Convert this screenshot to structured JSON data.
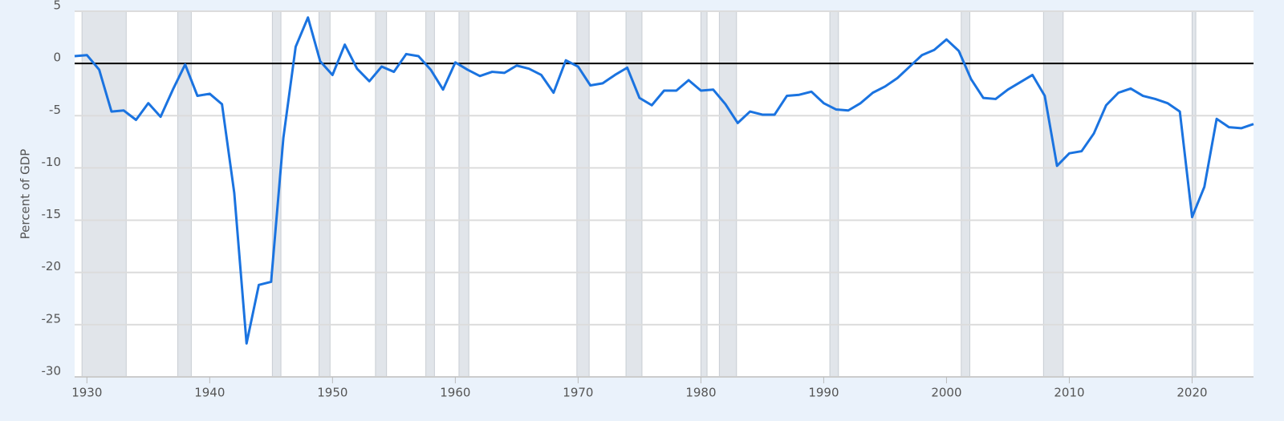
{
  "chart_data": {
    "type": "line",
    "y_label": "Percent of GDP",
    "x": [
      1929,
      1930,
      1931,
      1932,
      1933,
      1934,
      1935,
      1936,
      1937,
      1938,
      1939,
      1940,
      1941,
      1942,
      1943,
      1944,
      1945,
      1946,
      1947,
      1948,
      1949,
      1950,
      1951,
      1952,
      1953,
      1954,
      1955,
      1956,
      1957,
      1958,
      1959,
      1960,
      1961,
      1962,
      1963,
      1964,
      1965,
      1966,
      1967,
      1968,
      1969,
      1970,
      1971,
      1972,
      1973,
      1974,
      1975,
      1976,
      1977,
      1978,
      1979,
      1980,
      1981,
      1982,
      1983,
      1984,
      1985,
      1986,
      1987,
      1988,
      1989,
      1990,
      1991,
      1992,
      1993,
      1994,
      1995,
      1996,
      1997,
      1998,
      1999,
      2000,
      2001,
      2002,
      2003,
      2004,
      2005,
      2006,
      2007,
      2008,
      2009,
      2010,
      2011,
      2012,
      2013,
      2014,
      2015,
      2016,
      2017,
      2018,
      2019,
      2020,
      2021,
      2022,
      2023,
      2024,
      2025
    ],
    "series": [
      {
        "color": "#1a73e0",
        "values": [
          0.7,
          0.8,
          -0.6,
          -4.6,
          -4.5,
          -5.4,
          -3.8,
          -5.1,
          -2.5,
          -0.1,
          -3.1,
          -2.9,
          -3.9,
          -12.4,
          -26.8,
          -21.2,
          -20.9,
          -7.1,
          1.6,
          4.4,
          0.2,
          -1.1,
          1.8,
          -0.5,
          -1.7,
          -0.3,
          -0.8,
          0.9,
          0.7,
          -0.6,
          -2.5,
          0.1,
          -0.6,
          -1.2,
          -0.8,
          -0.9,
          -0.2,
          -0.5,
          -1.1,
          -2.8,
          0.3,
          -0.3,
          -2.1,
          -1.9,
          -1.1,
          -0.4,
          -3.3,
          -4.0,
          -2.6,
          -2.6,
          -1.6,
          -2.6,
          -2.5,
          -3.9,
          -5.7,
          -4.6,
          -4.9,
          -4.9,
          -3.1,
          -3.0,
          -2.7,
          -3.8,
          -4.4,
          -4.5,
          -3.8,
          -2.8,
          -2.2,
          -1.4,
          -0.3,
          0.8,
          1.3,
          2.3,
          1.2,
          -1.5,
          -3.3,
          -3.4,
          -2.5,
          -1.8,
          -1.1,
          -3.1,
          -9.8,
          -8.6,
          -8.4,
          -6.7,
          -4.0,
          -2.8,
          -2.4,
          -3.1,
          -3.4,
          -3.8,
          -4.6,
          -14.7,
          -11.8,
          -5.3,
          -6.1,
          -6.2,
          -5.8
        ]
      }
    ],
    "recessions": [
      [
        1929.6,
        1933.2
      ],
      [
        1937.4,
        1938.5
      ],
      [
        1945.1,
        1945.8
      ],
      [
        1948.9,
        1949.8
      ],
      [
        1953.5,
        1954.4
      ],
      [
        1957.6,
        1958.3
      ],
      [
        1960.3,
        1961.1
      ],
      [
        1969.9,
        1970.9
      ],
      [
        1973.9,
        1975.2
      ],
      [
        1980.0,
        1980.5
      ],
      [
        1981.5,
        1982.9
      ],
      [
        1990.5,
        1991.2
      ],
      [
        2001.2,
        2001.9
      ],
      [
        2007.9,
        2009.5
      ],
      [
        2020.0,
        2020.3
      ]
    ],
    "recession_color": "#e1e5ea",
    "xlim": [
      1929,
      2025
    ],
    "xticks": [
      1930,
      1940,
      1950,
      1960,
      1970,
      1980,
      1990,
      2000,
      2010,
      2020
    ],
    "ylim": [
      -30,
      5
    ],
    "yticks": [
      5,
      0,
      -5,
      -10,
      -15,
      -20,
      -25,
      -30
    ],
    "grid": true,
    "zero_line": 0
  }
}
